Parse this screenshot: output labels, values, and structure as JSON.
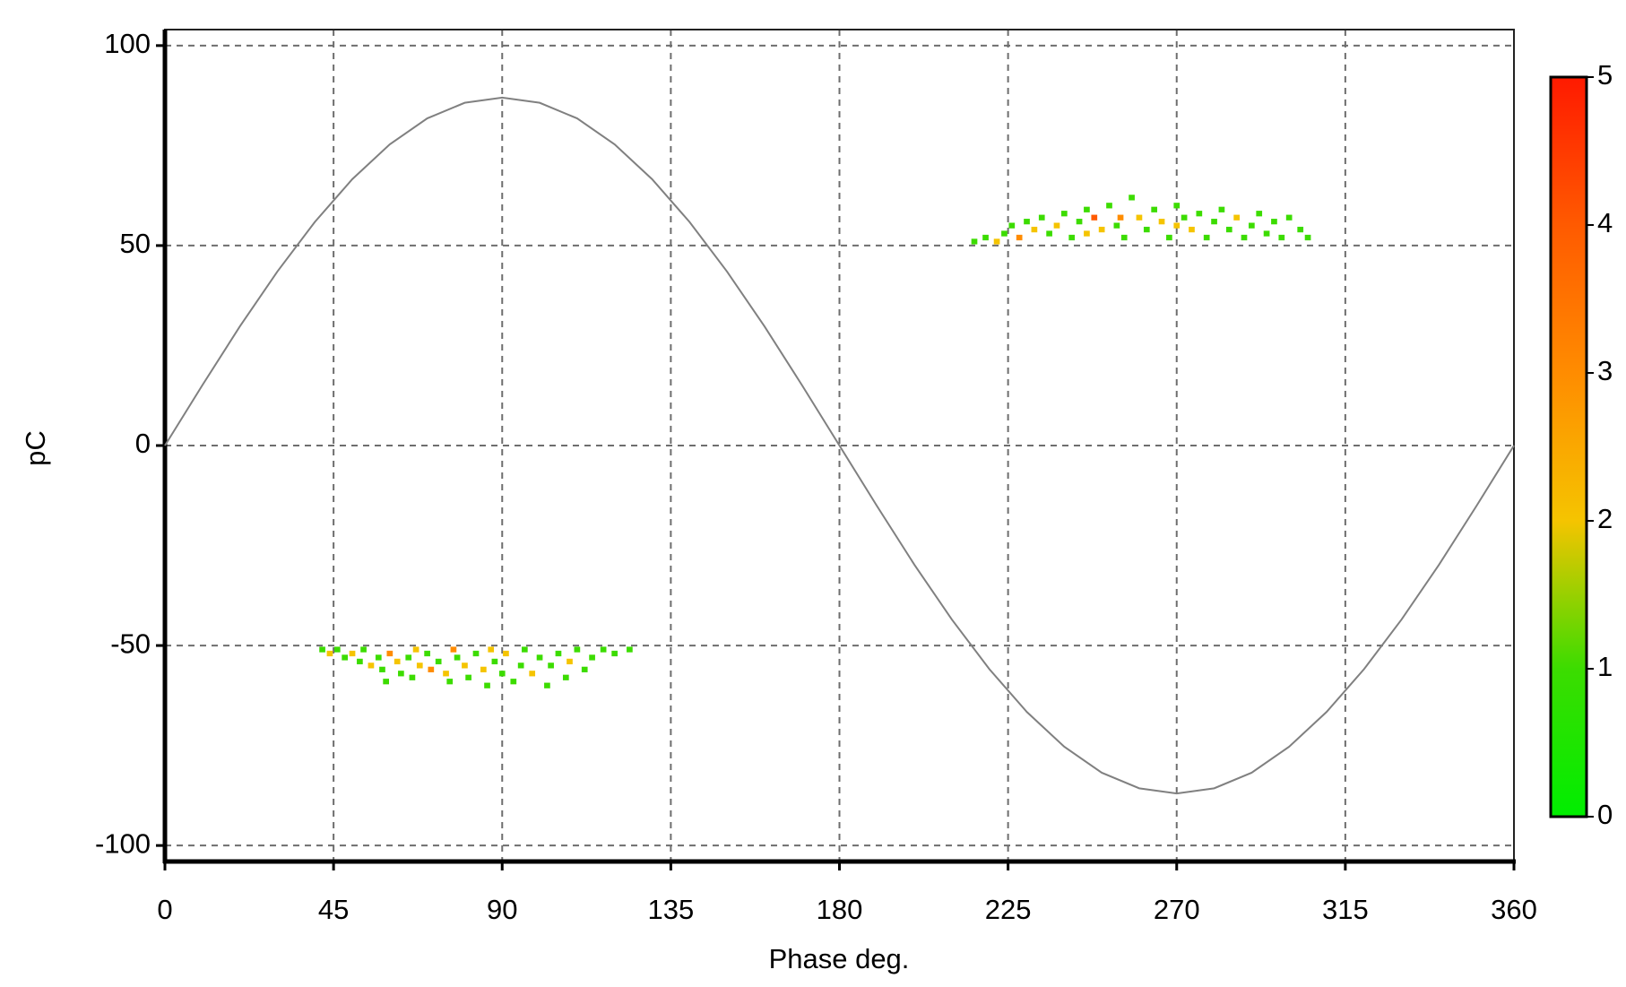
{
  "chart_data": {
    "type": "scatter",
    "x_label": "Phase deg.",
    "y_label": "pC",
    "xlim": [
      0,
      360
    ],
    "ylim": [
      -104,
      104
    ],
    "xticks": [
      0,
      45,
      90,
      135,
      180,
      225,
      270,
      315,
      360
    ],
    "yticks": [
      -100,
      -50,
      0,
      50,
      100
    ],
    "grid": true,
    "sine": {
      "color": "#808080",
      "x": [
        0,
        10,
        20,
        30,
        40,
        50,
        60,
        70,
        80,
        90,
        100,
        110,
        120,
        130,
        140,
        150,
        160,
        170,
        180,
        190,
        200,
        210,
        220,
        230,
        240,
        250,
        260,
        270,
        280,
        290,
        300,
        310,
        320,
        330,
        340,
        350,
        360
      ],
      "values": [
        0,
        15.1,
        29.8,
        43.5,
        55.9,
        66.6,
        75.3,
        81.8,
        85.7,
        87,
        85.7,
        81.8,
        75.3,
        66.6,
        55.9,
        43.5,
        29.8,
        15.1,
        0,
        -15.1,
        -29.8,
        -43.5,
        -55.9,
        -66.6,
        -75.3,
        -81.8,
        -85.7,
        -87,
        -85.7,
        -81.8,
        -75.3,
        -66.6,
        -55.9,
        -43.5,
        -29.8,
        -15.1,
        0
      ]
    },
    "points": {
      "x": [
        42,
        44,
        46,
        48,
        50,
        52,
        53,
        55,
        57,
        58,
        60,
        62,
        63,
        65,
        66,
        68,
        70,
        71,
        73,
        75,
        76,
        78,
        80,
        81,
        83,
        85,
        86,
        88,
        90,
        91,
        93,
        95,
        96,
        98,
        100,
        102,
        103,
        105,
        107,
        108,
        110,
        112,
        114,
        117,
        120,
        124,
        67,
        77,
        87,
        59,
        216,
        219,
        222,
        224,
        226,
        228,
        230,
        232,
        234,
        236,
        238,
        240,
        242,
        244,
        246,
        248,
        250,
        252,
        254,
        256,
        258,
        260,
        262,
        264,
        266,
        268,
        270,
        272,
        274,
        276,
        278,
        280,
        282,
        284,
        286,
        288,
        290,
        292,
        294,
        296,
        298,
        300,
        303,
        305,
        246,
        255,
        270
      ],
      "y": [
        -51,
        -52,
        -51,
        -53,
        -52,
        -54,
        -51,
        -55,
        -53,
        -56,
        -52,
        -54,
        -57,
        -53,
        -58,
        -55,
        -52,
        -56,
        -54,
        -57,
        -59,
        -53,
        -55,
        -58,
        -52,
        -56,
        -60,
        -54,
        -57,
        -52,
        -59,
        -55,
        -51,
        -57,
        -53,
        -60,
        -55,
        -52,
        -58,
        -54,
        -51,
        -56,
        -53,
        -51,
        -52,
        -51,
        -51,
        -51,
        -51,
        -59,
        51,
        52,
        51,
        53,
        55,
        52,
        56,
        54,
        57,
        53,
        55,
        58,
        52,
        56,
        59,
        57,
        54,
        60,
        55,
        52,
        62,
        57,
        54,
        59,
        56,
        52,
        60,
        57,
        54,
        58,
        52,
        56,
        59,
        54,
        57,
        52,
        55,
        58,
        53,
        56,
        52,
        57,
        54,
        52,
        53,
        57,
        55
      ],
      "counts": [
        1,
        2,
        1,
        1,
        2,
        1,
        1,
        2,
        1,
        1,
        3,
        2,
        1,
        1,
        1,
        2,
        1,
        3,
        1,
        2,
        1,
        1,
        2,
        1,
        1,
        2,
        1,
        1,
        1,
        2,
        1,
        1,
        1,
        2,
        1,
        1,
        1,
        1,
        1,
        2,
        1,
        1,
        1,
        1,
        1,
        1,
        2,
        3,
        2,
        1,
        1,
        1,
        2,
        1,
        1,
        3,
        1,
        2,
        1,
        1,
        2,
        1,
        1,
        1,
        1,
        4,
        2,
        1,
        1,
        1,
        1,
        2,
        1,
        1,
        2,
        1,
        1,
        1,
        2,
        1,
        1,
        1,
        1,
        1,
        2,
        1,
        1,
        1,
        1,
        1,
        1,
        1,
        1,
        1,
        2,
        3,
        2
      ]
    },
    "colorbar": {
      "lim": [
        0,
        5
      ],
      "ticks": [
        0,
        1,
        2,
        3,
        4,
        5
      ],
      "colors": [
        "#00ee00",
        "#3cdc00",
        "#f5c400",
        "#ff8c00",
        "#ff5a00",
        "#ff1a00"
      ]
    }
  }
}
